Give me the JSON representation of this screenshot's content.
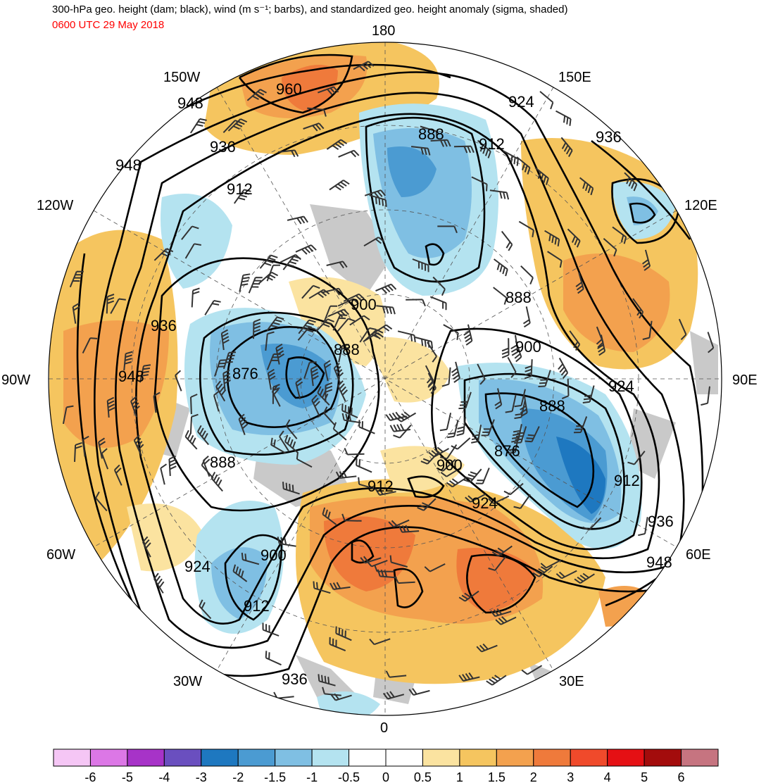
{
  "header": {
    "title": "300-hPa geo. height (dam; black), wind (m s⁻¹; barbs), and standardized geo. height anomaly (sigma, shaded)",
    "valid_time": "0600 UTC 29 May 2018"
  },
  "map": {
    "projection": "north-polar-stereographic",
    "longitude_labels": [
      {
        "id": "lon-180",
        "text": "180"
      },
      {
        "id": "lon-150e",
        "text": "150E"
      },
      {
        "id": "lon-120e",
        "text": "120E"
      },
      {
        "id": "lon-90e",
        "text": "90E"
      },
      {
        "id": "lon-60e",
        "text": "60E"
      },
      {
        "id": "lon-30e",
        "text": "30E"
      },
      {
        "id": "lon-0",
        "text": "0"
      },
      {
        "id": "lon-30w",
        "text": "30W"
      },
      {
        "id": "lon-60w",
        "text": "60W"
      },
      {
        "id": "lon-90w",
        "text": "90W"
      },
      {
        "id": "lon-120w",
        "text": "120W"
      },
      {
        "id": "lon-150w",
        "text": "150W"
      }
    ],
    "contour_labels": [
      "960",
      "948",
      "936",
      "948",
      "912",
      "924",
      "888",
      "912",
      "936",
      "120E",
      "900",
      "888",
      "876",
      "888",
      "888",
      "900",
      "924",
      "876",
      "900",
      "912",
      "912",
      "924",
      "936",
      "948",
      "924",
      "900",
      "912",
      "936",
      "948",
      "936",
      "948"
    ],
    "contour_values_dam": [
      876,
      888,
      900,
      912,
      924,
      936,
      948,
      960
    ]
  },
  "colorbar": {
    "unit": "sigma",
    "colors": [
      "#f5c6f5",
      "#dc77e6",
      "#a733c8",
      "#6a4fbf",
      "#1e78c0",
      "#4b9bd2",
      "#7fbfe3",
      "#b4e3f0",
      "#ffffff",
      "#ffffff",
      "#fbe3a0",
      "#f5c55f",
      "#f3a14e",
      "#ef7a3b",
      "#f04a2b",
      "#e51014",
      "#a30c0c",
      "#c67480"
    ],
    "labels": [
      "-6",
      "-5",
      "-4",
      "-3",
      "-2",
      "-1.5",
      "-1",
      "-0.5",
      "0",
      "0.5",
      "1",
      "1.5",
      "2",
      "3",
      "4",
      "5",
      "6"
    ]
  },
  "anomaly_colors": {
    "neg3": "#1e78c0",
    "neg2": "#4b9bd2",
    "neg15": "#7fbfe3",
    "neg1": "#b4e3f0",
    "pos1": "#fbe3a0",
    "pos15": "#f5c55f",
    "pos2": "#f3a14e",
    "pos3": "#ef7a3b",
    "land": "#c9c9c9"
  }
}
